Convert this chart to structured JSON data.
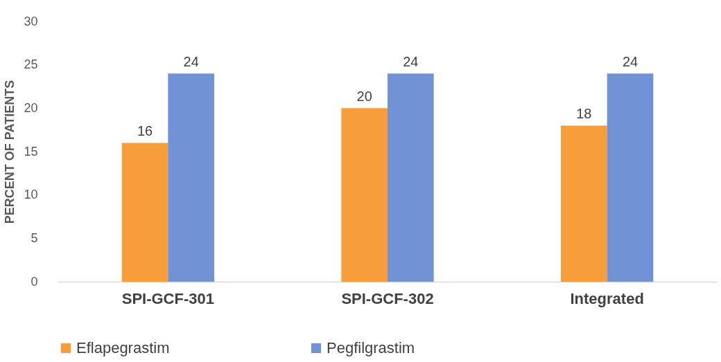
{
  "chart_data": {
    "type": "bar",
    "ylabel": "PERCENT OF PATIENTS",
    "categories": [
      "SPI-GCF-301",
      "SPI-GCF-302",
      "Integrated"
    ],
    "series": [
      {
        "name": "Eflapegrastim",
        "color": "#f79d3c",
        "values": [
          16,
          20,
          18
        ]
      },
      {
        "name": "Pegfilgrastim",
        "color": "#7193d6",
        "values": [
          24,
          24,
          24
        ]
      }
    ],
    "ylim": [
      0,
      30
    ],
    "yticks": [
      0,
      5,
      10,
      15,
      20,
      25,
      30
    ],
    "grid": false,
    "legend": "bottom",
    "data_labels": true
  }
}
